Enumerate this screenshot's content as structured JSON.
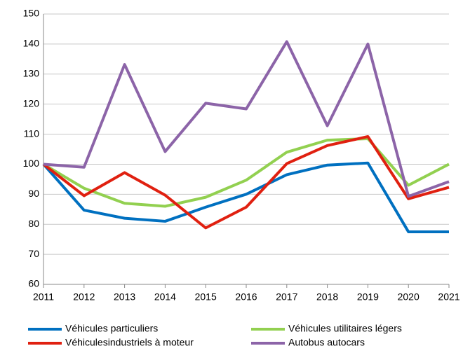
{
  "chart_data": {
    "type": "line",
    "x": [
      2011,
      2012,
      2013,
      2014,
      2015,
      2016,
      2017,
      2018,
      2019,
      2020,
      2021
    ],
    "xlim": [
      2011,
      2021
    ],
    "xticks": [
      2011,
      2012,
      2013,
      2014,
      2015,
      2016,
      2017,
      2018,
      2019,
      2020,
      2021
    ],
    "ylim": [
      60,
      150
    ],
    "yticks": [
      60,
      70,
      80,
      90,
      100,
      110,
      120,
      130,
      140,
      150
    ],
    "grid": true,
    "legend": "bottom",
    "series": [
      {
        "name": "Véhicules particuliers",
        "color": "#0070c0",
        "values": [
          100,
          84.7,
          82,
          81,
          85.7,
          90,
          96.5,
          99.7,
          100.4,
          77.5,
          77.5
        ]
      },
      {
        "name": "Véhicules utilitaires légers",
        "color": "#92d050",
        "values": [
          100,
          92,
          87,
          86,
          89,
          94.7,
          104,
          108,
          108.5,
          93,
          100
        ]
      },
      {
        "name": "Véhiculesindustriels à moteur",
        "color": "#e02010",
        "values": [
          100,
          89.5,
          97.2,
          89.7,
          78.8,
          85.7,
          100.2,
          106.2,
          109.2,
          88.5,
          92.3
        ]
      },
      {
        "name": "Autobus autocars",
        "color": "#8c64a8",
        "values": [
          100,
          99,
          133.2,
          104.2,
          120.3,
          118.4,
          140.8,
          112.8,
          140,
          89.3,
          94.2
        ]
      }
    ]
  }
}
